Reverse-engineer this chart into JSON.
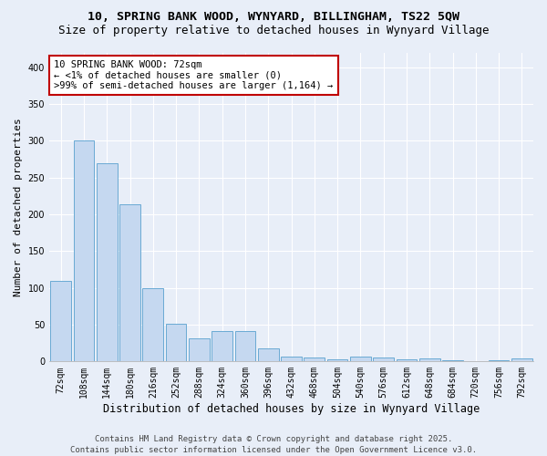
{
  "title": "10, SPRING BANK WOOD, WYNYARD, BILLINGHAM, TS22 5QW",
  "subtitle": "Size of property relative to detached houses in Wynyard Village",
  "xlabel": "Distribution of detached houses by size in Wynyard Village",
  "ylabel": "Number of detached properties",
  "categories": [
    "72sqm",
    "108sqm",
    "144sqm",
    "180sqm",
    "216sqm",
    "252sqm",
    "288sqm",
    "324sqm",
    "360sqm",
    "396sqm",
    "432sqm",
    "468sqm",
    "504sqm",
    "540sqm",
    "576sqm",
    "612sqm",
    "648sqm",
    "684sqm",
    "720sqm",
    "756sqm",
    "792sqm"
  ],
  "values": [
    110,
    300,
    270,
    213,
    100,
    51,
    31,
    41,
    41,
    18,
    7,
    5,
    3,
    6,
    5,
    3,
    4,
    2,
    1,
    2,
    4
  ],
  "bar_color": "#c5d8f0",
  "bar_edge_color": "#6aaad4",
  "annotation_text": "10 SPRING BANK WOOD: 72sqm\n← <1% of detached houses are smaller (0)\n>99% of semi-detached houses are larger (1,164) →",
  "annotation_box_facecolor": "#ffffff",
  "annotation_box_edgecolor": "#c00000",
  "ylim": [
    0,
    420
  ],
  "yticks": [
    0,
    50,
    100,
    150,
    200,
    250,
    300,
    350,
    400
  ],
  "bg_color": "#e8eef8",
  "plot_bg_color": "#e8eef8",
  "grid_color": "#ffffff",
  "footer_line1": "Contains HM Land Registry data © Crown copyright and database right 2025.",
  "footer_line2": "Contains public sector information licensed under the Open Government Licence v3.0.",
  "title_fontsize": 9.5,
  "subtitle_fontsize": 9,
  "xlabel_fontsize": 8.5,
  "ylabel_fontsize": 8,
  "tick_fontsize": 7,
  "footer_fontsize": 6.5,
  "annotation_fontsize": 7.5
}
